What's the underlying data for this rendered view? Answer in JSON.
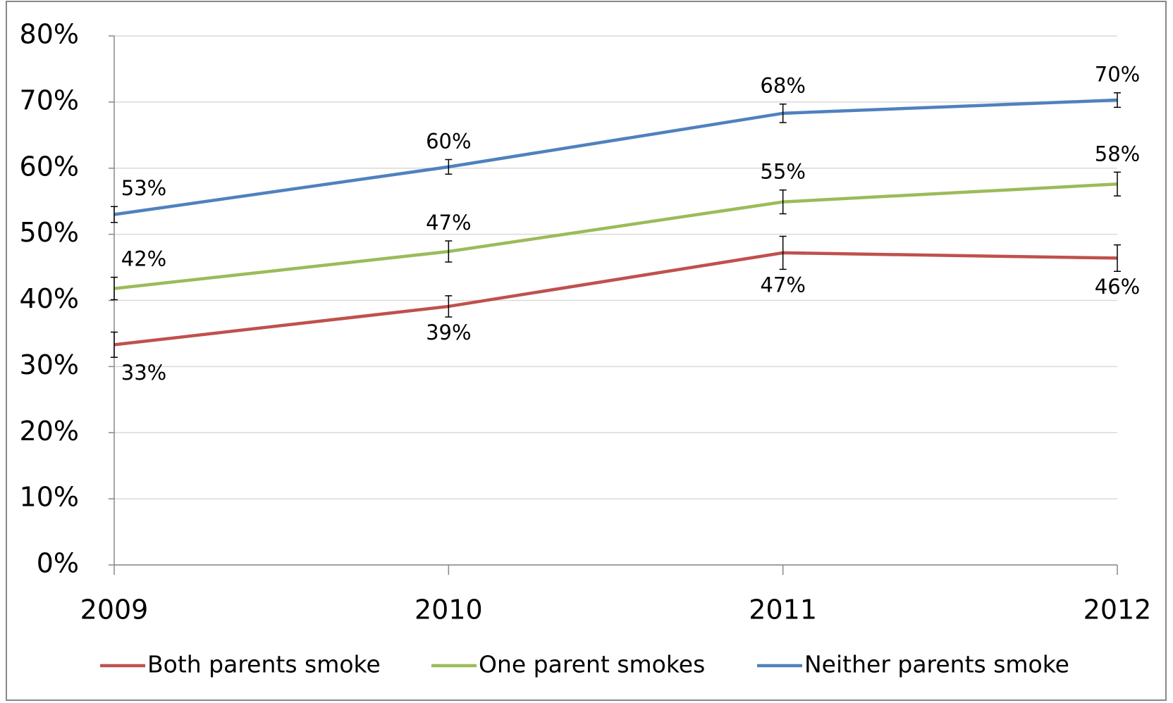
{
  "chart_data": {
    "type": "line",
    "categories": [
      "2009",
      "2010",
      "2011",
      "2012"
    ],
    "series": [
      {
        "name": "Both parents smoke",
        "color": "#c0504d",
        "values": [
          33.3,
          39.1,
          47.2,
          46.4
        ],
        "errors": [
          1.9,
          1.6,
          2.5,
          2.0
        ],
        "value_labels": [
          "33%",
          "39%",
          "47%",
          "46%"
        ]
      },
      {
        "name": "One parent smokes",
        "color": "#9bbb59",
        "values": [
          41.8,
          47.4,
          54.9,
          57.6
        ],
        "errors": [
          1.7,
          1.6,
          1.8,
          1.8
        ],
        "value_labels": [
          "42%",
          "47%",
          "55%",
          "58%"
        ]
      },
      {
        "name": "Neither parents smoke",
        "color": "#4f81bd",
        "values": [
          53.0,
          60.2,
          68.3,
          70.3
        ],
        "errors": [
          1.2,
          1.1,
          1.4,
          1.1
        ],
        "value_labels": [
          "53%",
          "60%",
          "68%",
          "70%"
        ]
      }
    ],
    "ylim": [
      0,
      80
    ],
    "yticks": [
      {
        "value": 0,
        "label": "0%"
      },
      {
        "value": 10,
        "label": "10%"
      },
      {
        "value": 20,
        "label": "20%"
      },
      {
        "value": 30,
        "label": "30%"
      },
      {
        "value": 40,
        "label": "40%"
      },
      {
        "value": 50,
        "label": "50%"
      },
      {
        "value": 60,
        "label": "60%"
      },
      {
        "value": 70,
        "label": "70%"
      },
      {
        "value": 80,
        "label": "80%"
      }
    ],
    "grid": true,
    "legend": "bottom"
  }
}
